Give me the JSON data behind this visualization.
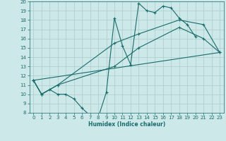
{
  "xlabel": "Humidex (Indice chaleur)",
  "ylabel": "",
  "xlim": [
    -0.5,
    23.5
  ],
  "ylim": [
    8,
    20
  ],
  "xticks": [
    0,
    1,
    2,
    3,
    4,
    5,
    6,
    7,
    8,
    9,
    10,
    11,
    12,
    13,
    14,
    15,
    16,
    17,
    18,
    19,
    20,
    21,
    22,
    23
  ],
  "yticks": [
    8,
    9,
    10,
    11,
    12,
    13,
    14,
    15,
    16,
    17,
    18,
    19,
    20
  ],
  "bg_color": "#cce8e8",
  "grid_color": "#aacccc",
  "line_color": "#1a6b6b",
  "series1_x": [
    0,
    1,
    2,
    3,
    4,
    5,
    6,
    7,
    8,
    9,
    10,
    11,
    12,
    13,
    14,
    15,
    16,
    17,
    18,
    19,
    20
  ],
  "series1_y": [
    11.5,
    10.0,
    10.5,
    10.0,
    10.0,
    9.5,
    8.5,
    7.7,
    7.5,
    10.2,
    18.2,
    15.2,
    13.2,
    19.8,
    19.0,
    18.8,
    19.5,
    19.3,
    18.2,
    17.5,
    16.2
  ],
  "series2_x": [
    0,
    1,
    3,
    10,
    13,
    18,
    21,
    23
  ],
  "series2_y": [
    11.5,
    10.0,
    11.0,
    15.5,
    16.5,
    18.0,
    17.5,
    14.5
  ],
  "series3_x": [
    0,
    1,
    3,
    10,
    13,
    18,
    21,
    23
  ],
  "series3_y": [
    11.5,
    10.0,
    11.0,
    13.0,
    15.0,
    17.2,
    16.0,
    14.5
  ],
  "series4_x": [
    0,
    23
  ],
  "series4_y": [
    11.5,
    14.5
  ]
}
